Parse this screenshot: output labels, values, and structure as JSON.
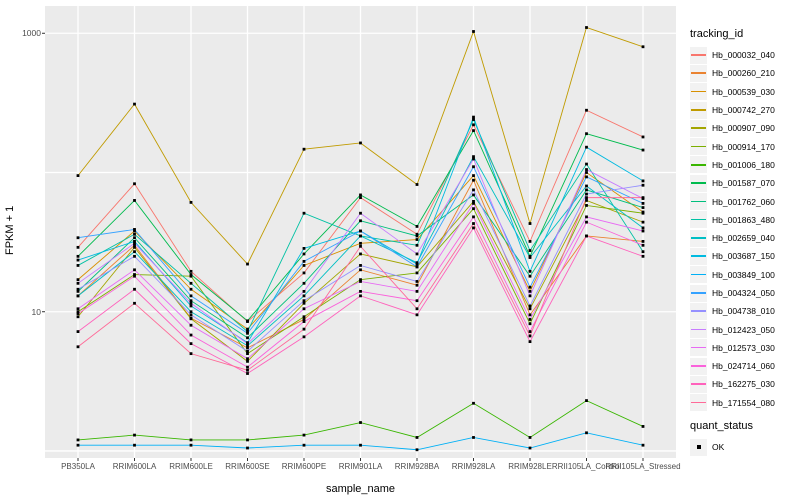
{
  "figure": {
    "background": "#FFFFFF",
    "panel_background": "#EBEBEB",
    "grid_color": "#FFFFFF",
    "tick_color": "#333333",
    "tick_text_color": "#4D4D4D"
  },
  "chart_data": {
    "type": "line",
    "xlabel": "sample_name",
    "ylabel": "FPKM + 1",
    "y_scale": "log10",
    "y_ticks": [
      10,
      1000
    ],
    "grid_values": [
      1,
      10,
      100,
      1000
    ],
    "ylim": [
      0.89,
      1570
    ],
    "legend_position": "right",
    "marker": {
      "shape": "square",
      "color": "#000000",
      "size": 2.8
    },
    "categories": [
      "PB350LA",
      "RRIM600LA",
      "RRIM600LE",
      "RRIM600SE",
      "RRIM600PE",
      "RRIM901LA",
      "RRIM928BA",
      "RRIM928LA",
      "RRIM928LE",
      "RRII105LA_Control",
      "RRII105LA_Stressed"
    ],
    "series": [
      {
        "name": "Hb_000032_040",
        "color": "#F8766D",
        "values": [
          29,
          83,
          19.5,
          8.5,
          19,
          66,
          36,
          220,
          32,
          280,
          180
        ]
      },
      {
        "name": "Hb_000260_210",
        "color": "#EA8331",
        "values": [
          13,
          30,
          9,
          5.5,
          8.8,
          20,
          15.5,
          88,
          9.5,
          35,
          32
        ]
      },
      {
        "name": "Hb_000539_030",
        "color": "#D89000",
        "values": [
          17,
          38,
          14.5,
          7.5,
          21.5,
          31,
          33,
          95,
          14,
          100,
          52
        ]
      },
      {
        "name": "Hb_000742_270",
        "color": "#C09B00",
        "values": [
          95,
          310,
          61,
          22,
          147,
          163,
          82,
          1030,
          43,
          1100,
          800
        ]
      },
      {
        "name": "Hb_000907_090",
        "color": "#A3A500",
        "values": [
          9.2,
          29,
          8.9,
          4.4,
          11.5,
          26,
          21,
          62,
          10.5,
          63,
          44
        ]
      },
      {
        "name": "Hb_000914_170",
        "color": "#7CAE00",
        "values": [
          10,
          18.5,
          18,
          5,
          9.2,
          17,
          19,
          55,
          8.2,
          58,
          51
        ]
      },
      {
        "name": "Hb_001006_180",
        "color": "#39B600",
        "values": [
          1.2,
          1.3,
          1.2,
          1.2,
          1.3,
          1.6,
          1.25,
          2.2,
          1.25,
          2.3,
          1.5
        ]
      },
      {
        "name": "Hb_001587_070",
        "color": "#00BB4E",
        "values": [
          25,
          63,
          18.5,
          8.6,
          26,
          69,
          41,
          200,
          25,
          190,
          145
        ]
      },
      {
        "name": "Hb_001762_060",
        "color": "#00BF7D",
        "values": [
          14,
          34,
          12,
          6.5,
          16,
          45,
          35,
          69,
          18,
          75,
          56
        ]
      },
      {
        "name": "Hb_001863_480",
        "color": "#00C1A3",
        "values": [
          21.5,
          36,
          16,
          7.2,
          51,
          35,
          30,
          240,
          27.5,
          115,
          27
        ]
      },
      {
        "name": "Hb_002659_040",
        "color": "#00BFC4",
        "values": [
          13,
          27,
          10,
          5.7,
          13,
          35,
          22.5,
          130,
          24.5,
          80,
          40
        ]
      },
      {
        "name": "Hb_003687_150",
        "color": "#00BAE0",
        "values": [
          23.5,
          32,
          11,
          6,
          28.5,
          38,
          22,
          250,
          19.5,
          152,
          87
        ]
      },
      {
        "name": "Hb_003849_100",
        "color": "#00B0F6",
        "values": [
          1.1,
          1.1,
          1.1,
          1.05,
          1.1,
          1.1,
          1.02,
          1.25,
          1.05,
          1.35,
          1.1
        ]
      },
      {
        "name": "Hb_004324_050",
        "color": "#35A2FF",
        "values": [
          34,
          39,
          13,
          7,
          23,
          38,
          21,
          110,
          15,
          93,
          60
        ]
      },
      {
        "name": "Hb_004738_010",
        "color": "#9590FF",
        "values": [
          14.5,
          25,
          9.5,
          5.2,
          12,
          21.5,
          16.5,
          75,
          11,
          70,
          81
        ]
      },
      {
        "name": "Hb_012423_050",
        "color": "#C77CFF",
        "values": [
          16,
          31,
          11.5,
          5.9,
          14,
          51,
          26,
          125,
          13,
          105,
          65
        ]
      },
      {
        "name": "Hb_012573_030",
        "color": "#E76BF3",
        "values": [
          10.5,
          20,
          8,
          4.6,
          10.5,
          16.5,
          14,
          60,
          8.8,
          48,
          38
        ]
      },
      {
        "name": "Hb_024714_060",
        "color": "#FA62DB",
        "values": [
          9.7,
          18,
          6.8,
          4,
          8.5,
          14,
          12,
          48,
          7.2,
          44,
          30
        ]
      },
      {
        "name": "Hb_162275_030",
        "color": "#FF62BC",
        "values": [
          7.2,
          14.5,
          5.9,
          3.6,
          6.6,
          13,
          9.5,
          40,
          6.1,
          35,
          25
        ]
      },
      {
        "name": "Hb_171554_080",
        "color": "#FF6A98",
        "values": [
          5.6,
          11.5,
          5,
          3.8,
          7.5,
          29.5,
          10.5,
          43,
          6.7,
          66,
          66
        ]
      }
    ]
  },
  "legend": {
    "tracking_title": "tracking_id",
    "quant_title": "quant_status",
    "quant_items": [
      {
        "label": "OK"
      }
    ]
  }
}
